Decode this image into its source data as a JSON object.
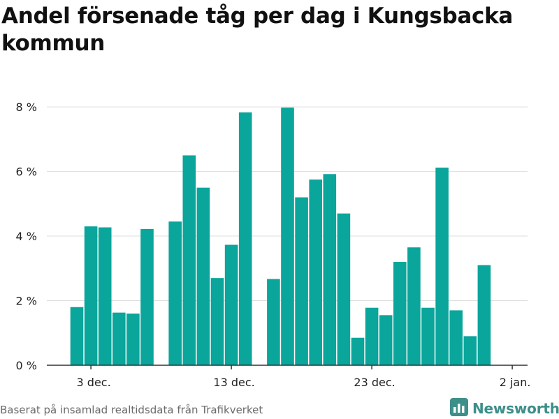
{
  "title": "Andel försenade tåg per dag i Kungsbacka kommun",
  "footer": {
    "source": "Baserat på insamlad realtidsdata från Trafikverket",
    "brand": "Newsworthy"
  },
  "colors": {
    "bar": "#0aa59b",
    "grid": "#dddddd",
    "axis": "#333333",
    "brand": "#3d8f8a"
  },
  "icons": {
    "brand_logo": "bar-chart-logo-icon"
  },
  "chart_data": {
    "type": "bar",
    "title": "Andel försenade tåg per dag i Kungsbacka kommun",
    "xlabel": "",
    "ylabel": "",
    "x_start": "2020-12-01",
    "x_end": "2020-12-31",
    "x_unit": "day",
    "x_ticks": [
      {
        "date": "2020-12-03",
        "label": "3 dec."
      },
      {
        "date": "2020-12-13",
        "label": "13 dec."
      },
      {
        "date": "2020-12-23",
        "label": "23 dec."
      },
      {
        "date": "2021-01-02",
        "label": "2 jan."
      }
    ],
    "y_ticks": [
      {
        "value": 0,
        "label": "0 %"
      },
      {
        "value": 2,
        "label": "2 %"
      },
      {
        "value": 4,
        "label": "4 %"
      },
      {
        "value": 6,
        "label": "6 %"
      },
      {
        "value": 8,
        "label": "8 %"
      }
    ],
    "ylim": [
      0,
      8.5
    ],
    "y_unit": "%",
    "grid": true,
    "dates": [
      "2020-12-02",
      "2020-12-03",
      "2020-12-04",
      "2020-12-05",
      "2020-12-06",
      "2020-12-07",
      "2020-12-08",
      "2020-12-09",
      "2020-12-10",
      "2020-12-11",
      "2020-12-12",
      "2020-12-13",
      "2020-12-14",
      "2020-12-15",
      "2020-12-16",
      "2020-12-17",
      "2020-12-18",
      "2020-12-19",
      "2020-12-20",
      "2020-12-21",
      "2020-12-22",
      "2020-12-23",
      "2020-12-24",
      "2020-12-25",
      "2020-12-26",
      "2020-12-27",
      "2020-12-28",
      "2020-12-29",
      "2020-12-30",
      "2020-12-31"
    ],
    "values": [
      1.8,
      4.3,
      4.27,
      1.63,
      1.6,
      4.22,
      null,
      4.45,
      6.5,
      5.5,
      2.7,
      3.73,
      7.83,
      null,
      2.67,
      7.98,
      5.2,
      5.75,
      5.92,
      4.7,
      0.85,
      1.78,
      1.55,
      3.2,
      3.65,
      1.78,
      6.12,
      1.7,
      0.9,
      3.1
    ]
  }
}
